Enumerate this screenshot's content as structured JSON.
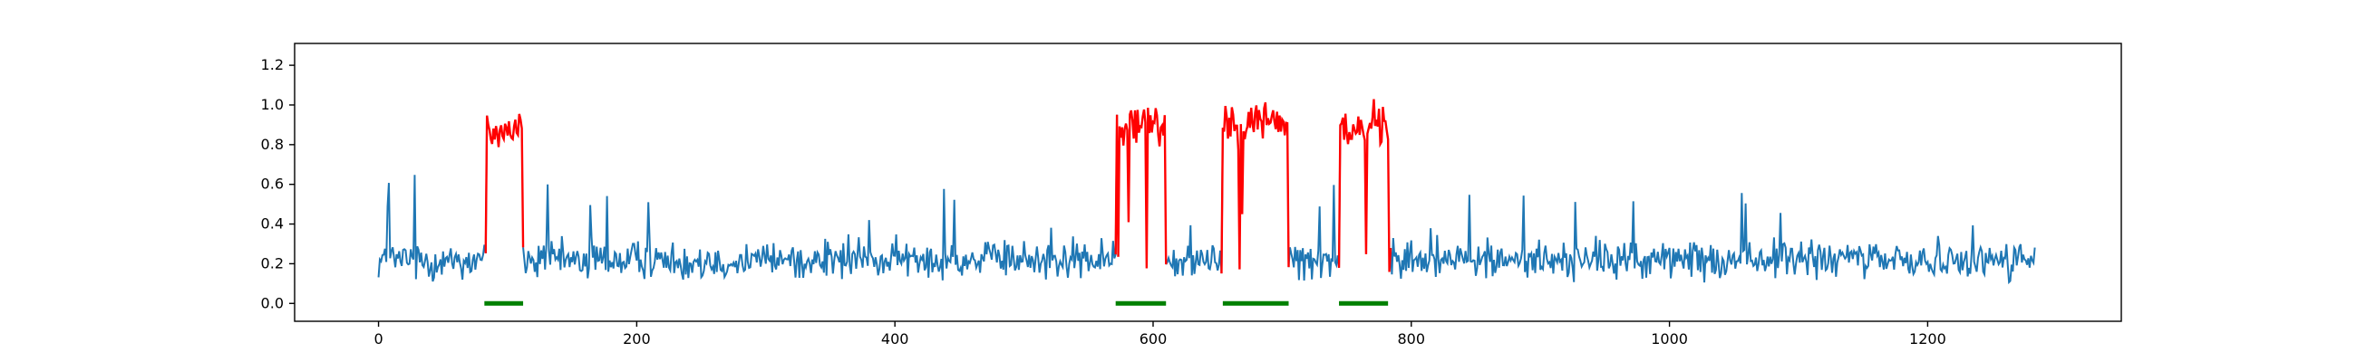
{
  "chart_data": {
    "type": "line",
    "xlim": [
      -65,
      1350
    ],
    "ylim": [
      -0.09,
      1.31
    ],
    "x_ticks": [
      0,
      200,
      400,
      600,
      800,
      1000,
      1200
    ],
    "y_ticks": [
      0.0,
      0.2,
      0.4,
      0.6,
      0.8,
      1.0,
      1.2
    ],
    "x_tick_labels": [
      "0",
      "200",
      "400",
      "600",
      "800",
      "1000",
      "1200"
    ],
    "y_tick_labels": [
      "0.0",
      "0.2",
      "0.4",
      "0.6",
      "0.8",
      "1.0",
      "1.2"
    ],
    "grid": false,
    "legend": "none",
    "signal": {
      "n_points": 1284,
      "baseline_level": 0.22,
      "baseline_noise": 0.09,
      "anomaly_level": 0.88,
      "anomaly_noise": 0.12,
      "color": "#1f77b4"
    },
    "anomaly_segments": [
      {
        "x_start": 84,
        "x_end": 111,
        "level": 0.88,
        "color": "#ff0000"
      },
      {
        "x_start": 572,
        "x_end": 609,
        "level": 0.9,
        "color": "#ff0000"
      },
      {
        "x_start": 654,
        "x_end": 704,
        "level": 0.92,
        "color": "#ff0000"
      },
      {
        "x_start": 745,
        "x_end": 783,
        "level": 0.9,
        "color": "#ff0000"
      }
    ],
    "ground_truth_bars": [
      {
        "x_start": 82,
        "x_end": 112,
        "y": 0.0,
        "color": "#008000"
      },
      {
        "x_start": 571,
        "x_end": 610,
        "y": 0.0,
        "color": "#008000"
      },
      {
        "x_start": 654,
        "x_end": 705,
        "y": 0.0,
        "color": "#008000"
      },
      {
        "x_start": 744,
        "x_end": 782,
        "y": 0.0,
        "color": "#008000"
      }
    ]
  }
}
